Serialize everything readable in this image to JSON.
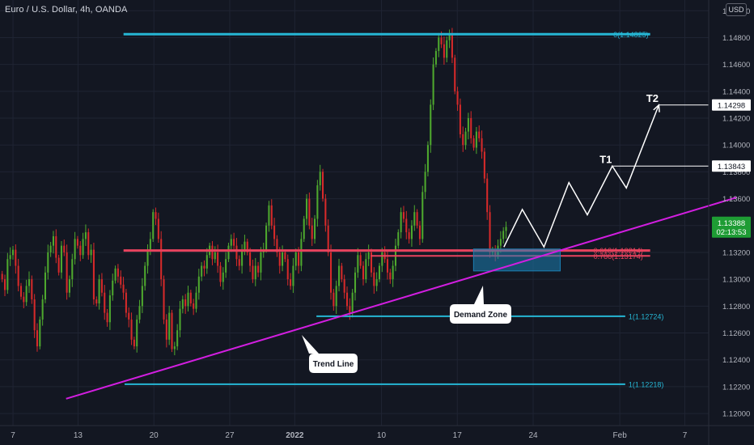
{
  "header": {
    "symbol_title": "Euro / U.S. Dollar, 4h, OANDA",
    "currency_badge": "USD"
  },
  "colors": {
    "background": "#131722",
    "grid": "#1f2433",
    "candle_up": "#4ea82e",
    "candle_down": "#d62a2a",
    "level_cyan": "#26b6d4",
    "fib_red": "#e8435e",
    "trendline_magenta": "#d21ee0",
    "zone_fill": "#1b7fb3",
    "projection": "#ffffff",
    "price_tag": "#1e9c34"
  },
  "chart_data": {
    "type": "candlestick",
    "title": "Euro / U.S. Dollar, 4h, OANDA",
    "ylim": [
      1.1191,
      1.1508
    ],
    "y_ticks": [
      "1.15000",
      "1.14800",
      "1.14600",
      "1.14400",
      "1.14200",
      "1.14000",
      "1.13800",
      "1.13600",
      "1.13400",
      "1.13200",
      "1.13000",
      "1.12800",
      "1.12600",
      "1.12400",
      "1.12200",
      "1.12000"
    ],
    "x_ticks": [
      "7",
      "13",
      "20",
      "27",
      "2022",
      "10",
      "17",
      "24",
      "Feb",
      "7"
    ],
    "x_tick_days": [
      0,
      6,
      13,
      20,
      26,
      34,
      41,
      48,
      56,
      62
    ],
    "xlim_days": [
      -1.2,
      64.2
    ],
    "current_price": {
      "value": 1.13388,
      "label": "1.13388",
      "countdown": "02:13:53"
    },
    "horizontal_levels": [
      {
        "name": "fib-0",
        "y": 1.14825,
        "label": "0(1.14825)",
        "x_start_day": 10.2,
        "x_end_day": 58.8,
        "color": "#26b6d4"
      },
      {
        "name": "fib-0.618",
        "y": 1.13214,
        "label": "0.618(1.13214)",
        "x_start_day": 10.2,
        "x_end_day": 58.8,
        "color": "#e8435e"
      },
      {
        "name": "fib-0.786",
        "y": 1.13174,
        "label": "0.786(1.13174)",
        "x_start_day": 33.0,
        "x_end_day": 58.8,
        "color": "#e8435e"
      },
      {
        "name": "level-1-upper",
        "y": 1.12724,
        "label": "1(1.12724)",
        "x_start_day": 28.0,
        "x_end_day": 56.5,
        "color": "#26b6d4"
      },
      {
        "name": "level-1-lower",
        "y": 1.12218,
        "label": "1(1.12218)",
        "x_start_day": 10.3,
        "x_end_day": 56.5,
        "color": "#26b6d4"
      }
    ],
    "trend_line": {
      "label": "Trend Line",
      "from": {
        "day": 4.9,
        "y": 1.1211
      },
      "to": {
        "day": 66.8,
        "y": 1.1361
      }
    },
    "demand_zone": {
      "label": "Demand Zone",
      "x_start_day": 42.5,
      "x_end_day": 50.5,
      "y_top": 1.13225,
      "y_bottom": 1.13062
    },
    "projection_path": [
      {
        "day": 45.3,
        "y": 1.1324
      },
      {
        "day": 47.0,
        "y": 1.1352
      },
      {
        "day": 49.0,
        "y": 1.1324
      },
      {
        "day": 51.3,
        "y": 1.1372
      },
      {
        "day": 53.0,
        "y": 1.1348
      },
      {
        "day": 55.3,
        "y": 1.13843
      },
      {
        "day": 56.6,
        "y": 1.1368
      },
      {
        "day": 59.6,
        "y": 1.14298
      }
    ],
    "targets": [
      {
        "name": "T1",
        "label": "T1",
        "y": 1.13843,
        "price_label": "1.13843",
        "line_start_day": 55.3
      },
      {
        "name": "T2",
        "label": "T2",
        "y": 1.14298,
        "price_label": "1.14298",
        "line_start_day": 59.6
      }
    ],
    "closes": [
      1.13,
      1.1292,
      1.1315,
      1.1318,
      1.1322,
      1.131,
      1.1295,
      1.1287,
      1.1283,
      1.1295,
      1.13,
      1.1285,
      1.1262,
      1.125,
      1.127,
      1.1285,
      1.1305,
      1.132,
      1.1325,
      1.1332,
      1.1316,
      1.1305,
      1.1325,
      1.132,
      1.129,
      1.13,
      1.1315,
      1.133,
      1.1325,
      1.1318,
      1.133,
      1.1335,
      1.1318,
      1.1322,
      1.1285,
      1.1282,
      1.13,
      1.129,
      1.1275,
      1.1268,
      1.1288,
      1.1299,
      1.1308,
      1.1302,
      1.1296,
      1.129,
      1.1275,
      1.127,
      1.1255,
      1.125,
      1.127,
      1.128,
      1.1295,
      1.131,
      1.1322,
      1.133,
      1.135,
      1.1345,
      1.133,
      1.13,
      1.127,
      1.1255,
      1.1275,
      1.1248,
      1.125,
      1.1262,
      1.1278,
      1.1285,
      1.128,
      1.129,
      1.1282,
      1.1278,
      1.129,
      1.1302,
      1.131,
      1.1308,
      1.1318,
      1.1325,
      1.1315,
      1.132,
      1.131,
      1.1298,
      1.1305,
      1.1315,
      1.1325,
      1.133,
      1.1325,
      1.1315,
      1.131,
      1.1322,
      1.1328,
      1.132,
      1.131,
      1.13,
      1.131,
      1.1305,
      1.132,
      1.1322,
      1.134,
      1.1355,
      1.134,
      1.133,
      1.132,
      1.131,
      1.132,
      1.1315,
      1.13,
      1.1295,
      1.131,
      1.132,
      1.131,
      1.133,
      1.1345,
      1.136,
      1.134,
      1.133,
      1.1345,
      1.137,
      1.138,
      1.136,
      1.134,
      1.132,
      1.129,
      1.128,
      1.1295,
      1.131,
      1.13,
      1.129,
      1.128,
      1.1275,
      1.129,
      1.1305,
      1.1318,
      1.131,
      1.13,
      1.1315,
      1.132,
      1.1305,
      1.1295,
      1.13,
      1.131,
      1.132,
      1.1315,
      1.1305,
      1.13,
      1.131,
      1.1325,
      1.1335,
      1.135,
      1.1345,
      1.1335,
      1.133,
      1.134,
      1.135,
      1.134,
      1.133,
      1.1365,
      1.138,
      1.14,
      1.143,
      1.146,
      1.147,
      1.148,
      1.1475,
      1.1465,
      1.1478,
      1.1482,
      1.1465,
      1.144,
      1.143,
      1.1408,
      1.14,
      1.141,
      1.142,
      1.1405,
      1.1398,
      1.141,
      1.1405,
      1.1395,
      1.1375,
      1.135,
      1.132,
      1.1322,
      1.1318,
      1.1325,
      1.133,
      1.1336,
      1.1339
    ]
  }
}
